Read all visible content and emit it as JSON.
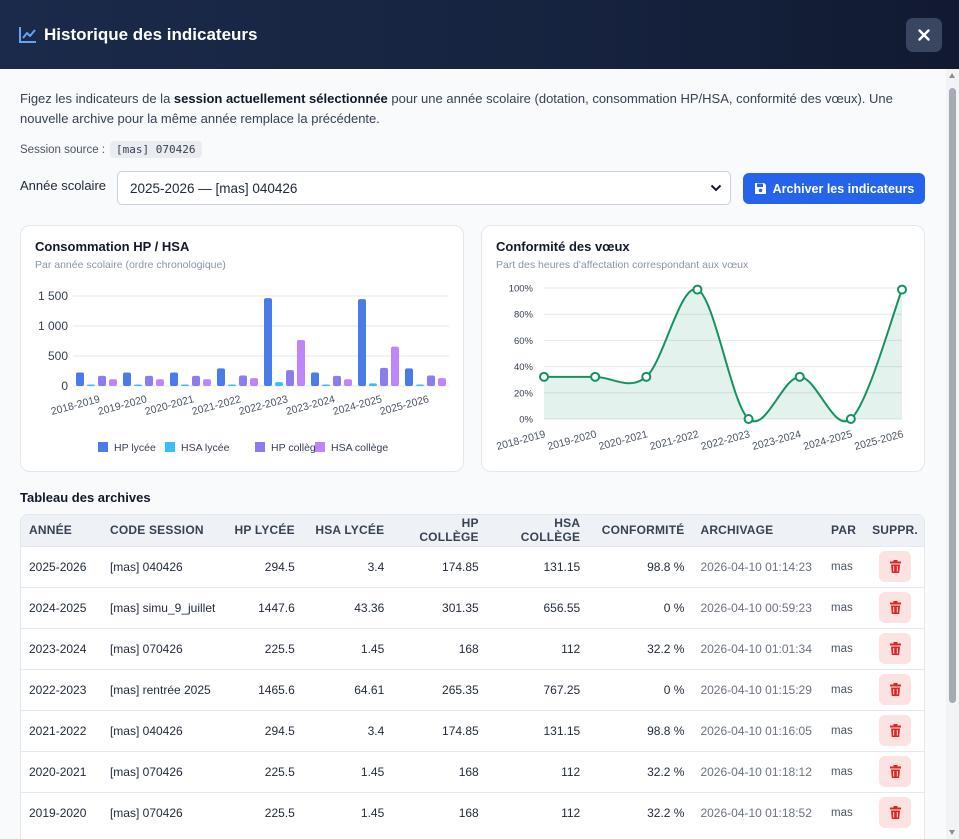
{
  "window": {
    "title": "Historique des indicateurs",
    "close_label": "×"
  },
  "intro": {
    "prefix": "Figez les indicateurs de la ",
    "bold": "session actuellement sélectionnée",
    "suffix": " pour une année scolaire (dotation, consommation HP/HSA, conformité des vœux). Une nouvelle archive pour la même année remplace la précédente."
  },
  "source": {
    "label": "Session source :",
    "value": "[mas] 070426"
  },
  "year": {
    "label": "Année scolaire",
    "selected": "2025-2026 — [mas] 040426"
  },
  "archive_button": {
    "label": "Archiver les indicateurs"
  },
  "charts": {
    "consumption": {
      "title": "Consommation HP / HSA",
      "subtitle": "Par année scolaire (ordre chronologique)"
    },
    "conformity": {
      "title": "Conformité des vœux",
      "subtitle": "Part des heures d'affectation correspondant aux vœux"
    }
  },
  "chart_data": [
    {
      "type": "bar",
      "title": "Consommation HP / HSA",
      "subtitle": "Par année scolaire (ordre chronologique)",
      "categories": [
        "2018-2019",
        "2019-2020",
        "2020-2021",
        "2021-2022",
        "2022-2023",
        "2023-2024",
        "2024-2025",
        "2025-2026"
      ],
      "series": [
        {
          "name": "HP lycée",
          "color": "#4a7bea",
          "values": [
            225.5,
            225.5,
            225.5,
            294.5,
            1465.6,
            225.5,
            1447.6,
            294.5
          ]
        },
        {
          "name": "HSA lycée",
          "color": "#38bdf8",
          "values": [
            1.45,
            1.45,
            1.45,
            3.4,
            64.61,
            1.45,
            43.36,
            3.4
          ]
        },
        {
          "name": "HP collège",
          "color": "#8b7cf0",
          "values": [
            168,
            168,
            168,
            174.85,
            265.35,
            168,
            301.35,
            174.85
          ]
        },
        {
          "name": "HSA collège",
          "color": "#c084fc",
          "values": [
            112,
            112,
            112,
            131.15,
            767.25,
            112,
            656.55,
            131.15
          ]
        }
      ],
      "ylim": [
        0,
        1500
      ],
      "yticks": [
        "0",
        "500",
        "1 000",
        "1 500"
      ],
      "grid": true,
      "legend": "bottom"
    },
    {
      "type": "area",
      "title": "Conformité des vœux",
      "subtitle": "Part des heures d'affectation correspondant aux vœux",
      "categories": [
        "2018-2019",
        "2019-2020",
        "2020-2021",
        "2021-2022",
        "2022-2023",
        "2023-2024",
        "2024-2025",
        "2025-2026"
      ],
      "series": [
        {
          "color": "#15935f",
          "values": [
            32.2,
            32.2,
            32.2,
            98.8,
            0,
            32.2,
            0,
            98.8
          ]
        }
      ],
      "ylim": [
        0,
        100
      ],
      "yticks": [
        "0%",
        "20%",
        "40%",
        "60%",
        "80%",
        "100%"
      ],
      "grid": true
    }
  ],
  "table": {
    "title": "Tableau des archives",
    "headers": [
      "ANNÉE",
      "CODE SESSION",
      "HP LYCÉE",
      "HSA LYCÉE",
      "HP COLLÈGE",
      "HSA COLLÈGE",
      "CONFORMITÉ",
      "ARCHIVAGE",
      "PAR",
      "SUPPR."
    ],
    "rows": [
      [
        "2025-2026",
        "[mas] 040426",
        "294.5",
        "3.4",
        "174.85",
        "131.15",
        "98.8 %",
        "2026-04-10 01:14:23",
        "mas"
      ],
      [
        "2024-2025",
        "[mas] simu_9_juillet",
        "1447.6",
        "43.36",
        "301.35",
        "656.55",
        "0 %",
        "2026-04-10 00:59:23",
        "mas"
      ],
      [
        "2023-2024",
        "[mas] 070426",
        "225.5",
        "1.45",
        "168",
        "112",
        "32.2 %",
        "2026-04-10 01:01:34",
        "mas"
      ],
      [
        "2022-2023",
        "[mas] rentrée 2025",
        "1465.6",
        "64.61",
        "265.35",
        "767.25",
        "0 %",
        "2026-04-10 01:15:29",
        "mas"
      ],
      [
        "2021-2022",
        "[mas] 040426",
        "294.5",
        "3.4",
        "174.85",
        "131.15",
        "98.8 %",
        "2026-04-10 01:16:05",
        "mas"
      ],
      [
        "2020-2021",
        "[mas] 070426",
        "225.5",
        "1.45",
        "168",
        "112",
        "32.2 %",
        "2026-04-10 01:18:12",
        "mas"
      ],
      [
        "2019-2020",
        "[mas] 070426",
        "225.5",
        "1.45",
        "168",
        "112",
        "32.2 %",
        "2026-04-10 01:18:52",
        "mas"
      ]
    ]
  },
  "colors": {
    "header_bg": "#16233f",
    "accent": "#2563eb",
    "danger": "#dc2626",
    "danger_bg": "#fde2e2"
  }
}
